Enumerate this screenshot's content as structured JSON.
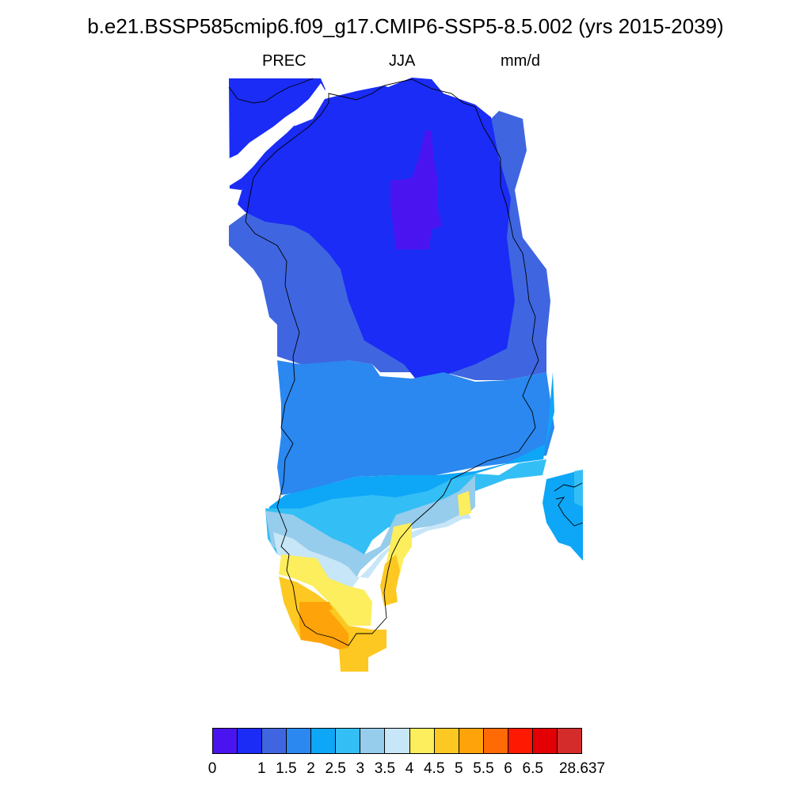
{
  "title": "b.e21.BSSP585cmip6.f09_g17.CMIP6-SSP5-8.5.002 (yrs 2015-2039)",
  "subtitle": {
    "variable": "PREC",
    "season": "JJA",
    "units": "mm/d"
  },
  "colorbar": {
    "colors": [
      "#4a14f0",
      "#1a2cf5",
      "#3f66e0",
      "#2a88f0",
      "#0ea6f7",
      "#33bff5",
      "#96ccec",
      "#c7e6f7",
      "#fcee5c",
      "#fdc821",
      "#fea30a",
      "#fe6b05",
      "#fe1a02",
      "#e20005",
      "#d42b2b"
    ],
    "labels": [
      "0",
      "1",
      "1.5",
      "2",
      "2.5",
      "3",
      "3.5",
      "4",
      "4.5",
      "5",
      "5.5",
      "6",
      "6.5",
      "28.637"
    ],
    "label_boundaries": [
      0,
      2,
      3,
      4,
      5,
      6,
      7,
      8,
      9,
      10,
      11,
      12,
      13,
      15
    ]
  },
  "map": {
    "region": "Greenland",
    "coastline_color": "#000000",
    "precip_fields_mm_per_day": [
      {
        "area": "central north ice sheet",
        "range": "0-1"
      },
      {
        "area": "northern and interior ice sheet",
        "range": "1-1.5"
      },
      {
        "area": "mid-latitude interior",
        "range": "1.5-2"
      },
      {
        "area": "southern interior",
        "range": "2-2.5"
      },
      {
        "area": "south-east coast",
        "range": "2.5-4"
      },
      {
        "area": "southern tip",
        "range": "4-5.5"
      }
    ]
  }
}
